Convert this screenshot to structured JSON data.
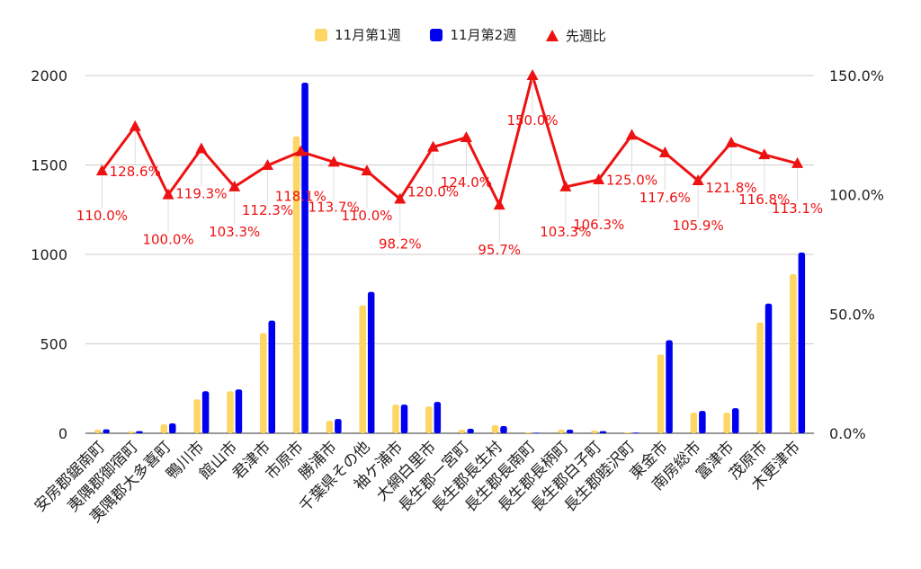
{
  "legend": {
    "series1": "11月第1週",
    "series2": "11月第2週",
    "series3": "先週比"
  },
  "colors": {
    "series1": "#fdd663",
    "series2": "#0000ee",
    "series3": "#ee1111",
    "grid": "#cccccc"
  },
  "chart_data": {
    "type": "bar",
    "categories": [
      "安房郡鋸南町",
      "夷隅郡御宿町",
      "夷隅郡大多喜町",
      "鴨川市",
      "館山市",
      "君津市",
      "市原市",
      "勝浦市",
      "千葉県その他",
      "袖ケ浦市",
      "大網白里市",
      "長生郡一宮町",
      "長生郡長生村",
      "長生郡長南町",
      "長生郡長柄町",
      "長生郡白子町",
      "長生郡睦沢町",
      "東金市",
      "南房総市",
      "富津市",
      "茂原市",
      "木更津市"
    ],
    "series": [
      {
        "name": "11月第1週",
        "values": [
          20,
          10,
          50,
          190,
          235,
          560,
          1660,
          70,
          715,
          160,
          150,
          20,
          45,
          5,
          20,
          15,
          5,
          440,
          115,
          115,
          620,
          890
        ]
      },
      {
        "name": "11月第2週",
        "values": [
          22,
          12,
          55,
          235,
          245,
          630,
          1960,
          80,
          790,
          160,
          175,
          25,
          40,
          3,
          20,
          12,
          4,
          520,
          125,
          140,
          725,
          1010
        ]
      },
      {
        "name": "先週比",
        "axis": "right",
        "values": [
          110.0,
          128.6,
          100.0,
          119.3,
          103.3,
          112.3,
          118.1,
          113.7,
          110.0,
          98.2,
          120.0,
          124.0,
          95.7,
          150.0,
          103.3,
          106.3,
          125.0,
          117.6,
          105.9,
          121.8,
          116.8,
          113.1
        ],
        "labels": [
          "110.0%",
          "128.6%",
          "100.0%",
          "119.3%",
          "103.3%",
          "112.3%",
          "118.1%",
          "113.7%",
          "110.0%",
          "98.2%",
          "120.0%",
          "124.0%",
          "95.7%",
          "150.0%",
          "103.3%",
          "106.3%",
          "125.0%",
          "117.6%",
          "105.9%",
          "121.8%",
          "116.8%",
          "113.1%"
        ]
      }
    ],
    "left_axis": {
      "ylim": [
        0,
        2000
      ],
      "ticks": [
        "0",
        "500",
        "1000",
        "1500",
        "2000"
      ]
    },
    "right_axis": {
      "ylim": [
        0,
        150
      ],
      "ticks": [
        "0.0%",
        "50.0%",
        "100.0%",
        "150.0%"
      ]
    },
    "grid": true,
    "legend_position": "top-center"
  }
}
